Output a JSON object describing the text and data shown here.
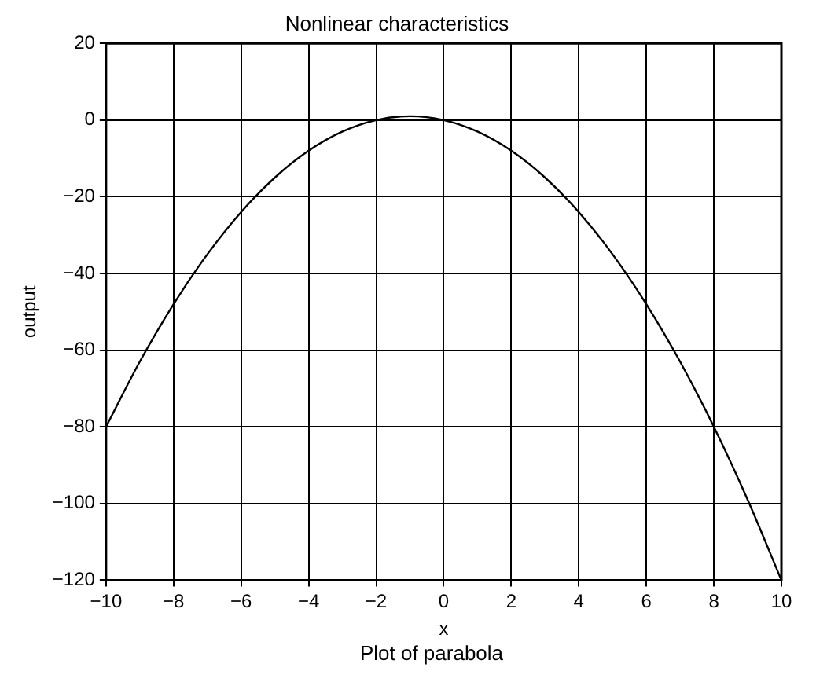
{
  "chart_data": {
    "type": "line",
    "title": "Nonlinear characteristics",
    "xlabel": "x",
    "ylabel": "output",
    "annotations": [
      "Plot of parabola"
    ],
    "series": [
      {
        "color": "#000000",
        "x": [
          -10,
          -9,
          -8,
          -7,
          -6,
          -5,
          -4,
          -3,
          -2,
          -1,
          0,
          1,
          2,
          3,
          4,
          5,
          6,
          7,
          8,
          9,
          10
        ],
        "values": [
          -80,
          -63,
          -48,
          -35,
          -24,
          -15,
          -8,
          -3,
          0,
          1,
          0,
          -3,
          -8,
          -15,
          -24,
          -35,
          -48,
          -63,
          -80,
          -99,
          -120
        ]
      }
    ],
    "xlim": [
      -10,
      10
    ],
    "xticks": [
      -10,
      -8,
      -6,
      -4,
      -2,
      0,
      2,
      4,
      6,
      8,
      10
    ],
    "ylim": [
      -120,
      20
    ],
    "yticks": [
      -120,
      -100,
      -80,
      -60,
      -40,
      -20,
      0,
      20
    ],
    "grid": true,
    "legend": false,
    "marker": "none",
    "line_style": "solid"
  }
}
